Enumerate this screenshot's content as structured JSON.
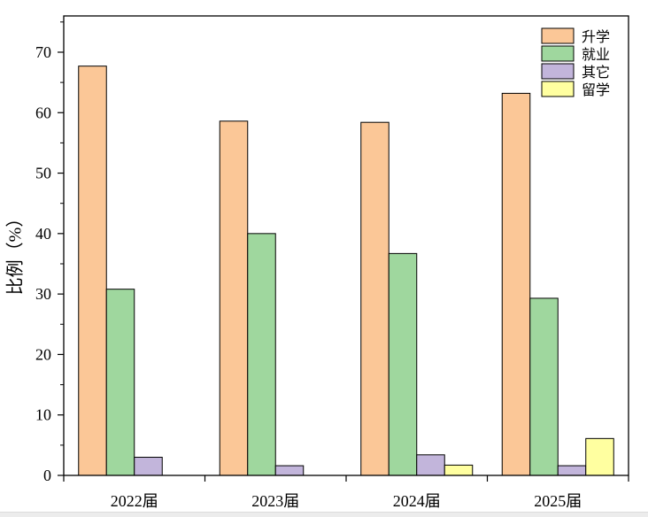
{
  "chart_data": {
    "type": "bar",
    "categories": [
      "2022届",
      "2023届",
      "2024届",
      "2025届"
    ],
    "series": [
      {
        "name": "升学",
        "values": [
          67.7,
          58.6,
          58.4,
          63.2
        ],
        "color": "#FBC797"
      },
      {
        "name": "就业",
        "values": [
          30.8,
          40.0,
          36.7,
          29.3
        ],
        "color": "#9FD79E"
      },
      {
        "name": "其它",
        "values": [
          3.0,
          1.6,
          3.4,
          1.6
        ],
        "color": "#C2B5DB"
      },
      {
        "name": "留学",
        "values": [
          0,
          0,
          1.7,
          6.1
        ],
        "color": "#FFFFA0"
      }
    ],
    "ylabel": "比例（%）",
    "ylim": [
      0,
      76
    ],
    "yticks": [
      0,
      10,
      20,
      30,
      40,
      50,
      60,
      70
    ],
    "grid": false,
    "legend": "top-right"
  }
}
